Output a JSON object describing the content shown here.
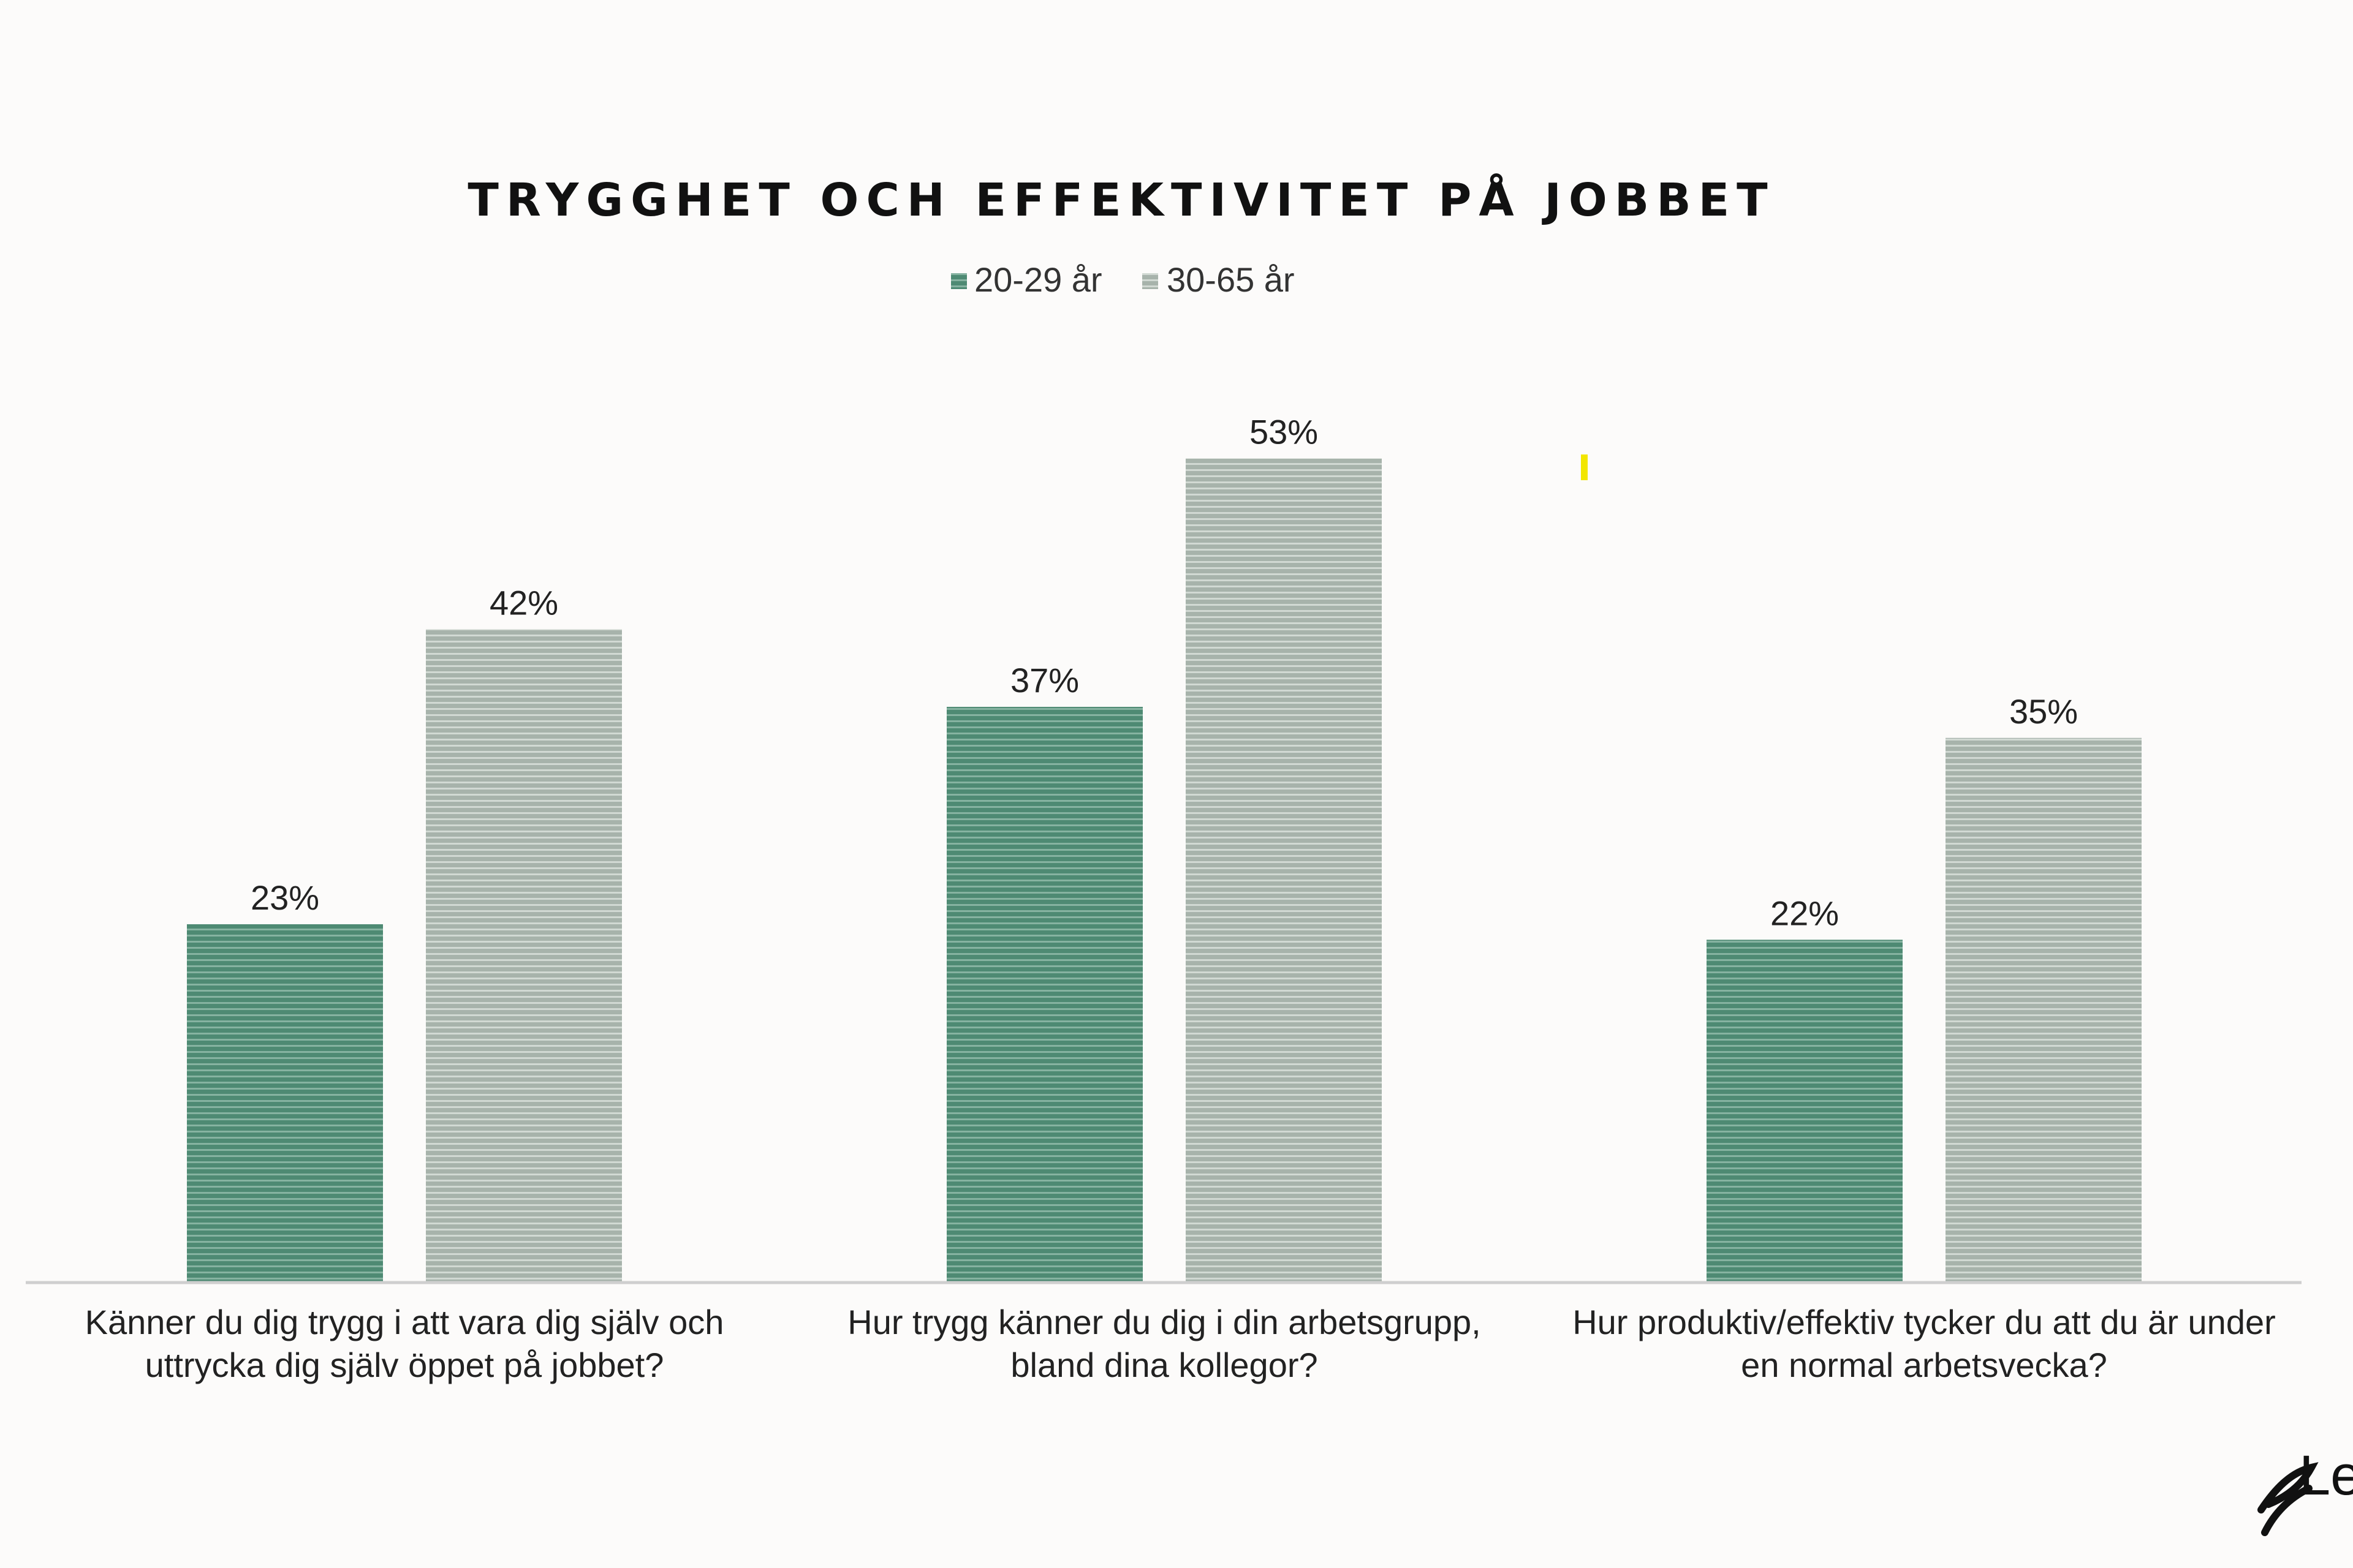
{
  "chart_data": {
    "type": "bar",
    "title": "TRYGGHET OCH EFFEKTIVITET PÅ JOBBET",
    "categories": [
      [
        "Känner du dig trygg i att vara dig själv och",
        "uttrycka dig själv öppet på jobbet?"
      ],
      [
        "Hur trygg känner du dig i din arbetsgrupp,",
        "bland dina kollegor?"
      ],
      [
        "Hur produktiv/effektiv tycker du att du är under",
        "en normal arbetsvecka?"
      ]
    ],
    "series": [
      {
        "name": "20-29 år",
        "values": [
          23,
          37,
          22
        ],
        "labels": [
          "23%",
          "37%",
          "22%"
        ],
        "color": "#4e8a73"
      },
      {
        "name": "30-65 år",
        "values": [
          42,
          53,
          35
        ],
        "labels": [
          "42%",
          "53%",
          "35%"
        ],
        "color": "#a9b4ad"
      }
    ],
    "ylim": [
      0,
      100
    ],
    "grid": false,
    "legend": "top-center"
  },
  "logo": {
    "text": "Le",
    "icon": "leaf-logo-icon"
  },
  "colors": {
    "background": "#fcfbfa",
    "axis": "#cfcfcf",
    "marker": "#f2e600"
  }
}
